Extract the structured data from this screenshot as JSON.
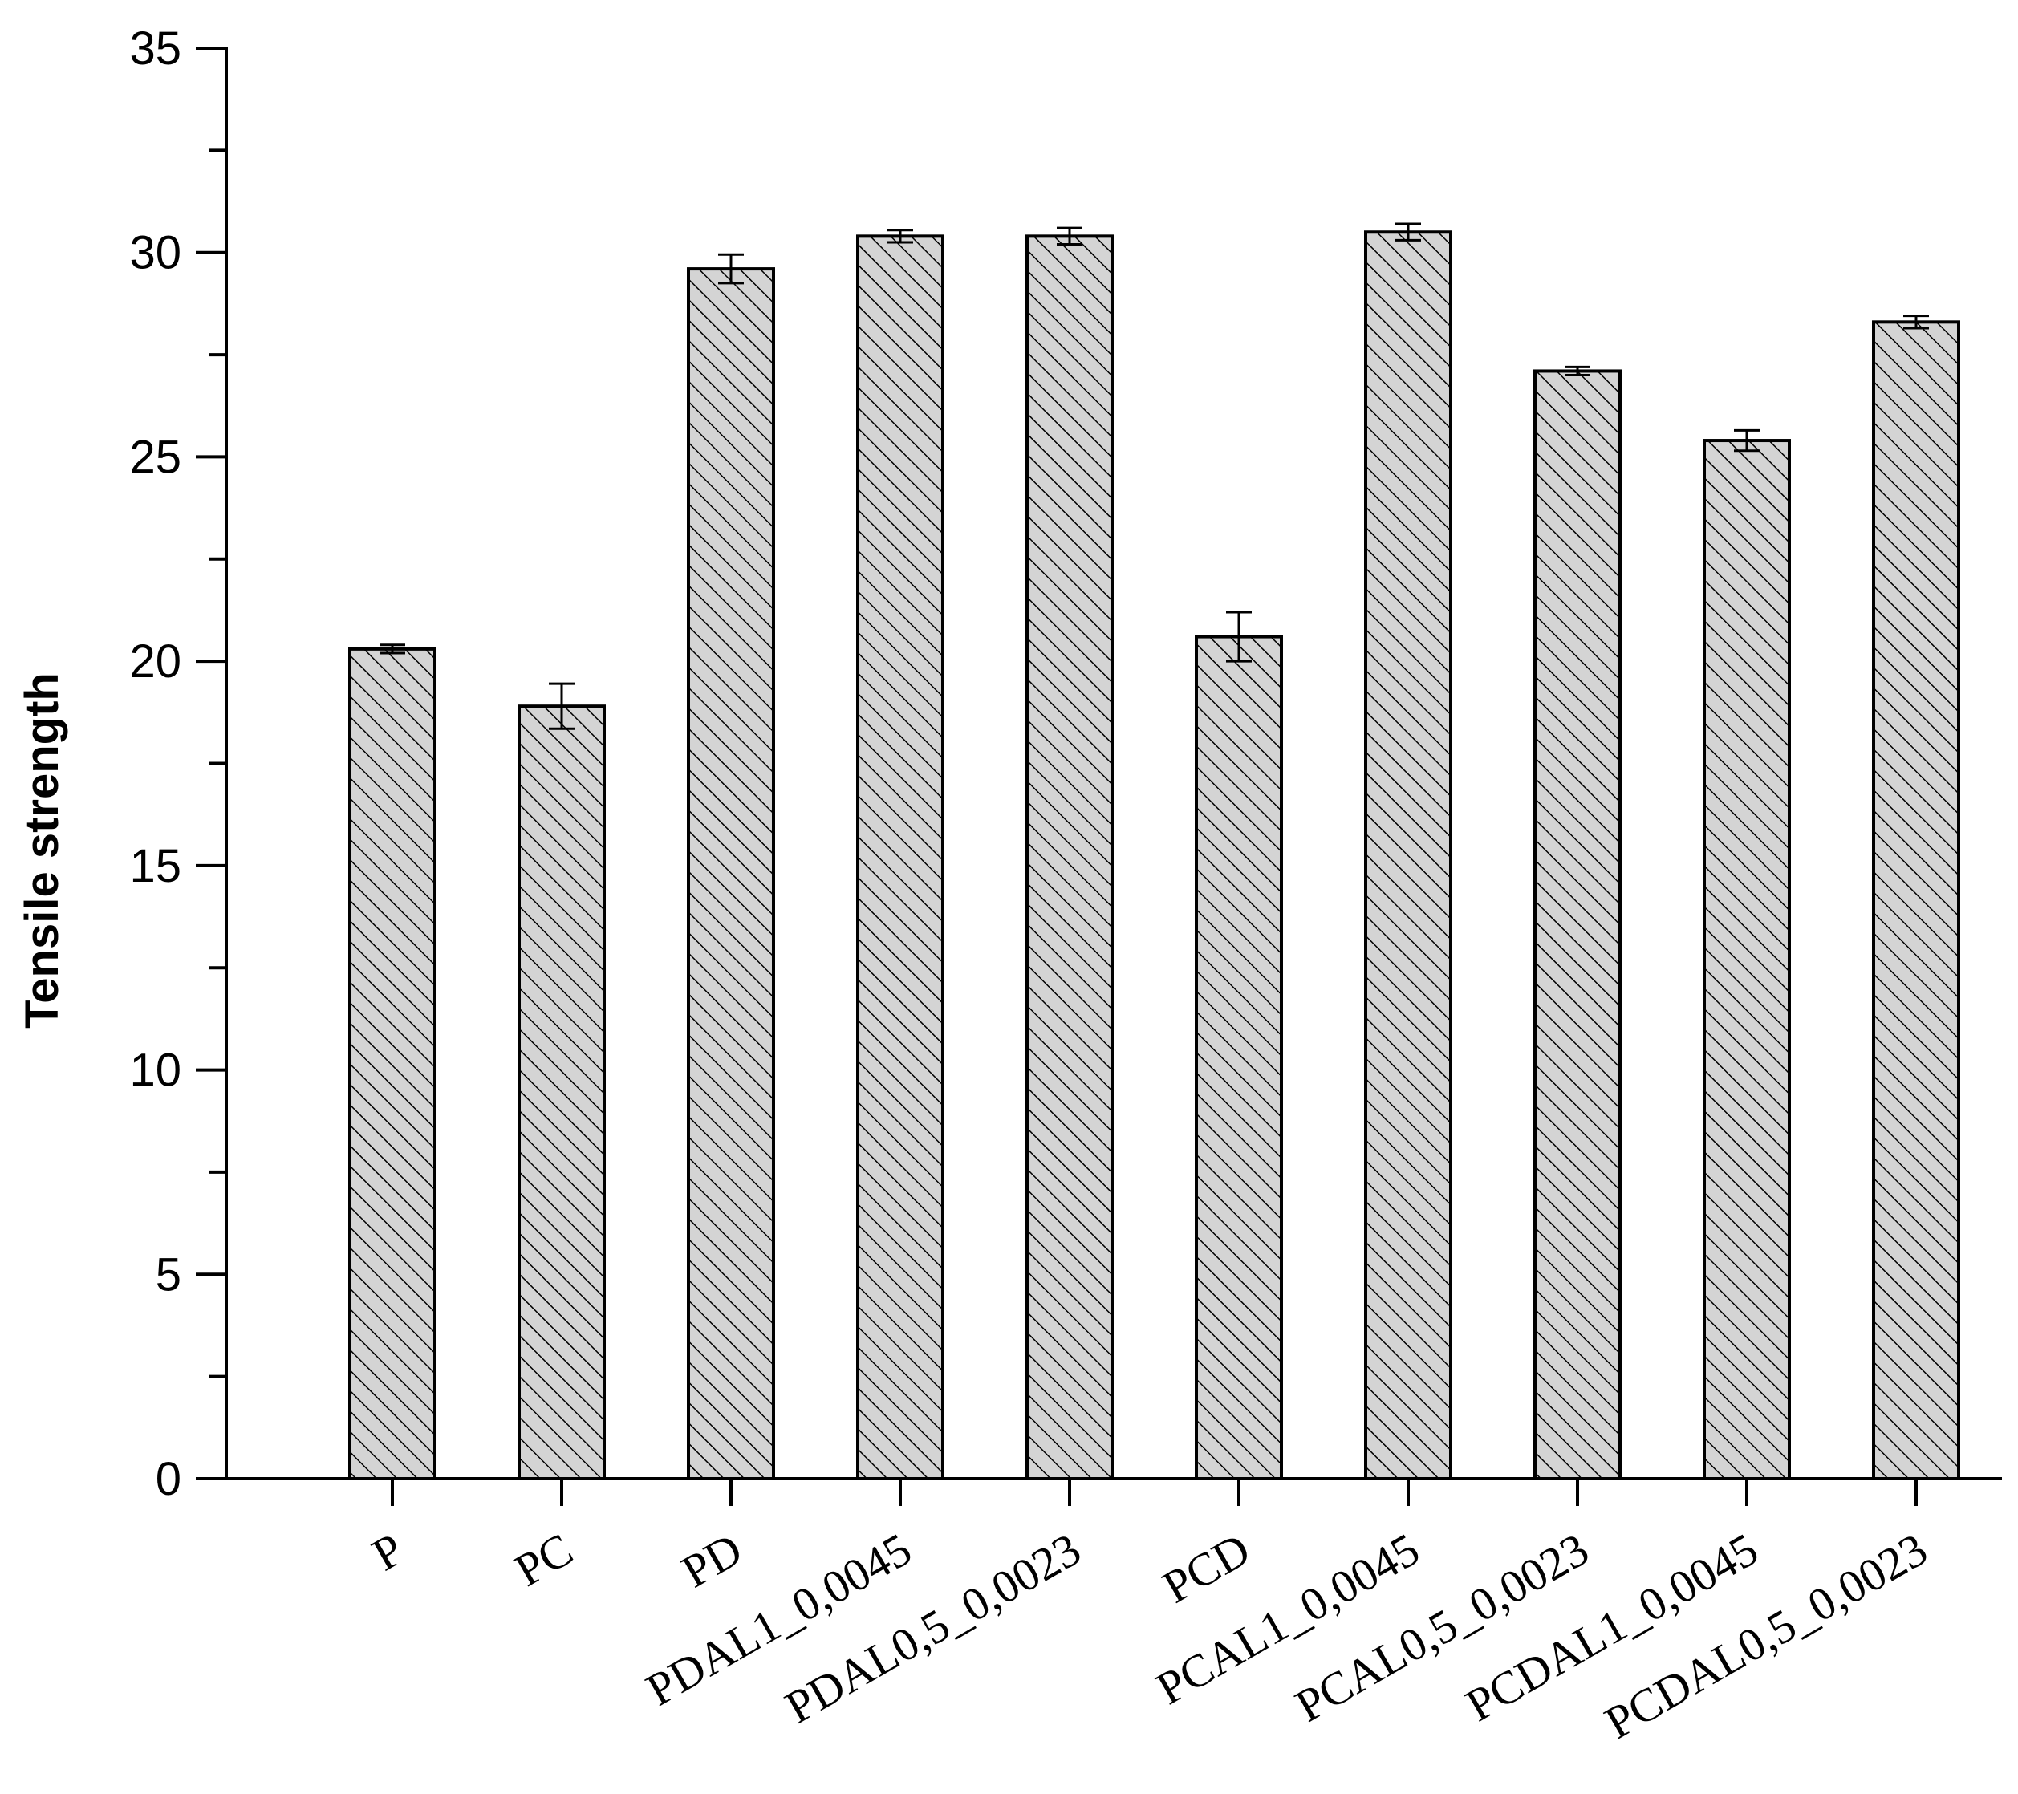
{
  "chart_data": {
    "type": "bar",
    "title": "",
    "xlabel": "",
    "ylabel": "Tensile strength",
    "ylim": [
      0,
      35
    ],
    "y_major_ticks": [
      0,
      5,
      10,
      15,
      20,
      25,
      30,
      35
    ],
    "y_tick_labels": [
      "0",
      "5",
      "10",
      "15",
      "20",
      "25",
      "30",
      "35"
    ],
    "y_minor_tick_step": 2.5,
    "grid": false,
    "legend": "none",
    "bar_fill": "#d4d4d4",
    "bar_hatch": "diagonal",
    "bar_stroke": "#000000",
    "categories": [
      "P",
      "PC",
      "PD",
      "PDAL1_0,0045",
      "PDAL0,5_0,0023",
      "PCD",
      "PCAL1_0,0045",
      "PCAL0,5_0,0023",
      "PCDAL1_0,0045",
      "PCDAL0,5_0,0023"
    ],
    "series": [
      {
        "values": [
          20.3,
          18.9,
          29.6,
          30.4,
          30.4,
          20.6,
          30.5,
          27.1,
          25.4,
          28.3
        ],
        "errors": [
          0.1,
          0.55,
          0.35,
          0.15,
          0.2,
          0.6,
          0.2,
          0.1,
          0.25,
          0.15
        ]
      }
    ]
  }
}
